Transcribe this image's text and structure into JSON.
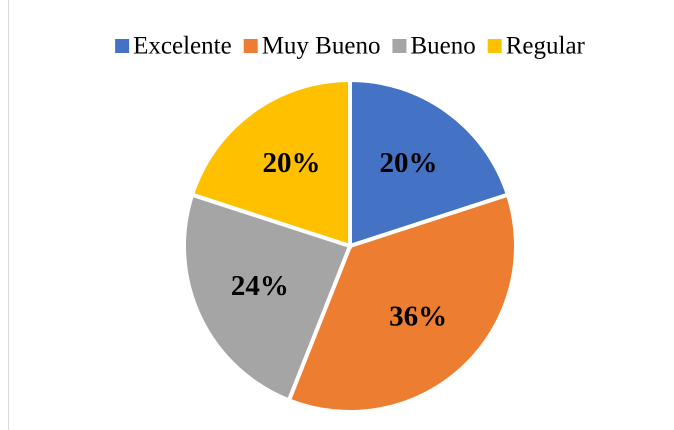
{
  "chart_data": {
    "type": "pie",
    "categories": [
      "Excelente",
      "Muy Bueno",
      "Bueno",
      "Regular"
    ],
    "values": [
      20,
      36,
      24,
      20
    ],
    "value_labels": [
      "20%",
      "36%",
      "24%",
      "20%"
    ],
    "colors": [
      "#4472c4",
      "#ed7d31",
      "#a5a5a5",
      "#ffc000"
    ],
    "legend": "top"
  }
}
